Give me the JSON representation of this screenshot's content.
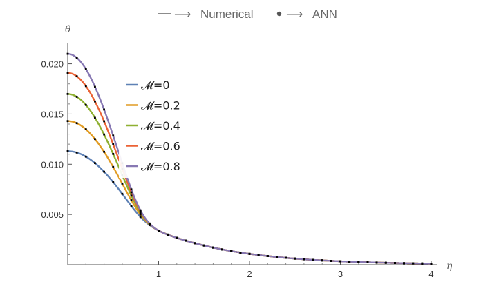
{
  "chart_data": {
    "type": "line",
    "title": "",
    "xlabel": "η",
    "ylabel": "θ",
    "xlim": [
      0,
      4.05
    ],
    "ylim": [
      -0.0005,
      0.0215
    ],
    "x_ticks": [
      1,
      2,
      3,
      4
    ],
    "x_tick_labels": [
      "1",
      "2",
      "3",
      "4"
    ],
    "y_ticks": [
      0.005,
      0.01,
      0.015,
      0.02
    ],
    "y_tick_labels": [
      "0.005",
      "0.010",
      "0.015",
      "0.020"
    ],
    "note": {
      "numerical_label": "Numerical",
      "ann_label": "ANN",
      "arrow": "⟶"
    },
    "legend_position": "upper-left inside plot",
    "model": {
      "theta_at": 0.8,
      "mid_at": 1.0,
      "value_at_mid": 0.0034,
      "decay_rate": 1.15,
      "blend_width": 0.45
    },
    "series": [
      {
        "name": "𝓜=0",
        "theta0": 0.0113,
        "color": "#5e81b5"
      },
      {
        "name": "𝓜=0.2",
        "theta0": 0.0143,
        "color": "#e19c24"
      },
      {
        "name": "𝓜=0.4",
        "theta0": 0.017,
        "color": "#8fb032"
      },
      {
        "name": "𝓜=0.6",
        "theta0": 0.0191,
        "color": "#eb6235"
      },
      {
        "name": "𝓜=0.8",
        "theta0": 0.021,
        "color": "#8778b3"
      }
    ],
    "ann_marker_x": [
      0,
      0.1,
      0.2,
      0.3,
      0.4,
      0.5,
      0.6,
      0.7,
      0.8,
      0.9,
      1.0,
      1.1,
      1.2,
      1.3,
      1.4,
      1.5,
      1.6,
      1.7,
      1.8,
      1.9,
      2.0,
      2.1,
      2.2,
      2.3,
      2.4,
      2.5,
      2.6,
      2.7,
      2.8,
      2.9,
      3.0,
      3.1,
      3.2,
      3.3,
      3.4,
      3.5,
      3.6,
      3.7,
      3.8,
      3.9,
      4.0
    ]
  }
}
